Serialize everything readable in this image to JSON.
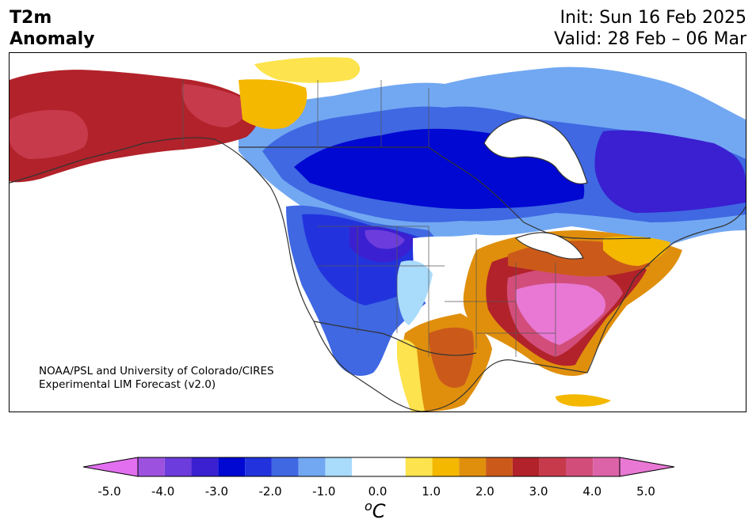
{
  "title": {
    "variable_line1": "T2m",
    "variable_line2": "Anomaly",
    "init": "Init: Sun 16 Feb 2025",
    "valid": "Valid: 28 Feb – 06 Mar"
  },
  "credit": {
    "line1": "NOAA/PSL and University of Colorado/CIRES",
    "line2": "Experimental LIM Forecast (v2.0)"
  },
  "colorbar": {
    "ticks": [
      "-5.0",
      "-4.0",
      "-3.0",
      "-2.0",
      "-1.0",
      "0.0",
      "1.0",
      "2.0",
      "3.0",
      "4.0",
      "5.0"
    ],
    "unit_prefix": "o",
    "unit": "C",
    "levels": [
      -5,
      -4.5,
      -4,
      -3.5,
      -3,
      -2.5,
      -2,
      -1.5,
      -1,
      -0.5,
      0.5,
      1,
      1.5,
      2,
      2.5,
      3,
      3.5,
      4,
      4.5,
      5
    ],
    "colors": [
      "#d76ee8",
      "#9d52df",
      "#6c3cdc",
      "#3a20d0",
      "#0008d2",
      "#2233dd",
      "#3f68e2",
      "#72a8f2",
      "#a9dbfb",
      "#ffffff",
      "#fde34d",
      "#f4b800",
      "#e08f0d",
      "#cb5a1a",
      "#b2222a",
      "#c73a4c",
      "#d24d7a",
      "#dc63a8",
      "#e878d4"
    ],
    "min_color": "#e26ff0",
    "max_color": "#e878d4"
  },
  "map": {
    "region": "North America",
    "warm_anomalies": [
      "Alaska",
      "Eastern United States",
      "Southern Plains",
      "Mexico (east)"
    ],
    "cold_anomalies": [
      "Canada",
      "Western United States",
      "Northern Plains"
    ],
    "strongest_cold_value": -4.0,
    "strongest_warm_value": 5.0
  }
}
